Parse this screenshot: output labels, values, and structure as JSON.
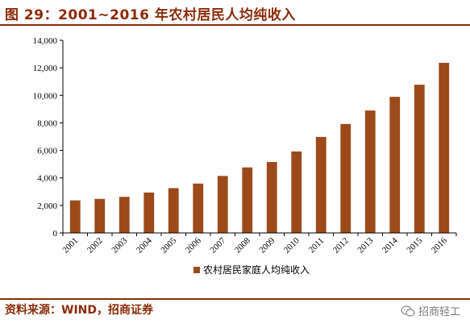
{
  "header": {
    "title": "图 29：2001~2016 年农村居民人均纯收入"
  },
  "footer": {
    "source": "资料来源：WIND，招商证券",
    "watermark": "招商轻工"
  },
  "colors": {
    "accent": "#8B2C0A",
    "bar": "#9C4A1A"
  },
  "chart_data": {
    "type": "bar",
    "categories": [
      "2001",
      "2002",
      "2003",
      "2004",
      "2005",
      "2006",
      "2007",
      "2008",
      "2009",
      "2010",
      "2011",
      "2012",
      "2013",
      "2014",
      "2015",
      "2016"
    ],
    "series": [
      {
        "name": "农村居民家庭人均纯收入",
        "values": [
          2366,
          2476,
          2622,
          2936,
          3255,
          3587,
          4140,
          4761,
          5153,
          5919,
          6977,
          7917,
          8896,
          9892,
          10772,
          12363
        ]
      }
    ],
    "ylim": [
      0,
      14000
    ],
    "yticks": [
      "0",
      "2,000",
      "4,000",
      "6,000",
      "8,000",
      "10,000",
      "12,000",
      "14,000"
    ],
    "ytick_values": [
      0,
      2000,
      4000,
      6000,
      8000,
      10000,
      12000,
      14000
    ],
    "grid": false,
    "legend_position": "bottom"
  }
}
